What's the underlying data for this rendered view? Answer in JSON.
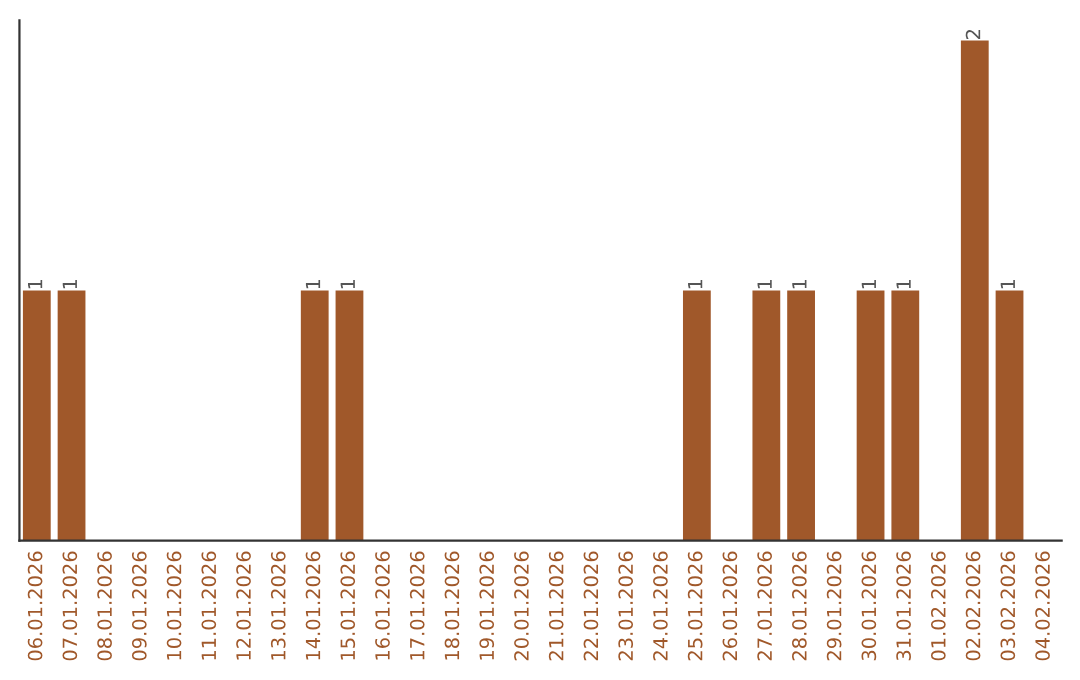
{
  "chart_data": {
    "type": "bar",
    "categories": [
      "06.01.2026",
      "07.01.2026",
      "08.01.2026",
      "09.01.2026",
      "10.01.2026",
      "11.01.2026",
      "12.01.2026",
      "13.01.2026",
      "14.01.2026",
      "15.01.2026",
      "16.01.2026",
      "17.01.2026",
      "18.01.2026",
      "19.01.2026",
      "20.01.2026",
      "21.01.2026",
      "22.01.2026",
      "23.01.2026",
      "24.01.2026",
      "25.01.2026",
      "26.01.2026",
      "27.01.2026",
      "28.01.2026",
      "29.01.2026",
      "30.01.2026",
      "31.01.2026",
      "01.02.2026",
      "02.02.2026",
      "03.02.2026",
      "04.02.2026"
    ],
    "values": [
      1,
      1,
      0,
      0,
      0,
      0,
      0,
      0,
      1,
      1,
      0,
      0,
      0,
      0,
      0,
      0,
      0,
      0,
      0,
      1,
      0,
      1,
      1,
      0,
      1,
      1,
      0,
      2,
      1,
      0
    ],
    "value_labels": [
      "1",
      "1",
      null,
      null,
      null,
      null,
      null,
      null,
      "1",
      "1",
      null,
      null,
      null,
      null,
      null,
      null,
      null,
      null,
      null,
      "1",
      null,
      "1",
      "1",
      null,
      "1",
      "1",
      null,
      "2",
      "1",
      null
    ],
    "color": "#a0582a",
    "grid": false,
    "tick_labels": "x"
  }
}
